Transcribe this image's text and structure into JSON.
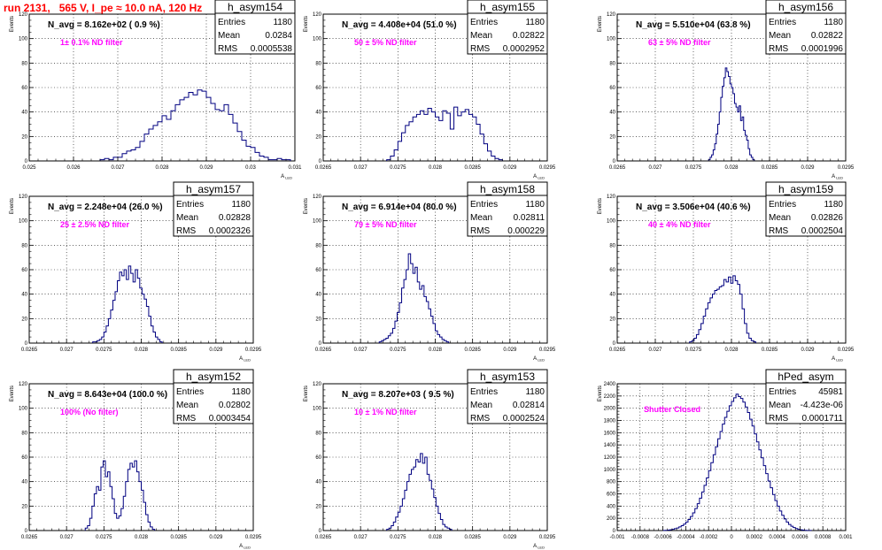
{
  "title": "run 2131,   565 V, I_pe ≈ 10.0 nA, 120 Hz",
  "chart_data": [
    {
      "type": "histogram",
      "name": "h_asym154",
      "stats": {
        "Entries": "1180",
        "Mean": "0.0284",
        "RMS": "0.0005538"
      },
      "n_avg": "N_avg = 8.162e+02 ( 0.9 %)",
      "filter_label": "1± 0.1% ND filter",
      "ylabel": "Events",
      "xlabel": "A",
      "xlabel_sub": "LED",
      "xlim": [
        0.025,
        0.031
      ],
      "ylim": [
        0,
        120
      ],
      "x_ticks": [
        0.025,
        0.026,
        0.027,
        0.028,
        0.029,
        0.03,
        0.031
      ],
      "x_tick_labels": [
        "0.025",
        "0.026",
        "0.027",
        "0.028",
        "0.029",
        "0.03",
        "0.031"
      ],
      "y_ticks": [
        0,
        20,
        40,
        60,
        80,
        100,
        120
      ],
      "grid": true,
      "bins": {
        "start": 0.0266,
        "width": 0.0001,
        "counts": [
          1,
          2,
          1,
          3,
          3,
          6,
          8,
          9,
          11,
          16,
          22,
          26,
          29,
          32,
          37,
          34,
          41,
          46,
          50,
          52,
          56,
          54,
          58,
          57,
          52,
          47,
          42,
          41,
          46,
          38,
          31,
          24,
          17,
          12,
          11,
          7,
          4,
          3,
          1,
          1,
          2,
          1,
          1
        ]
      }
    },
    {
      "type": "histogram",
      "name": "h_asym155",
      "stats": {
        "Entries": "1180",
        "Mean": "0.02822",
        "RMS": "0.0002952"
      },
      "n_avg": "N_avg = 4.408e+04 (51.0 %)",
      "filter_label": "50 ± 5% ND filter",
      "ylabel": "Events",
      "xlabel": "A",
      "xlabel_sub": "LED",
      "xlim": [
        0.0265,
        0.0295
      ],
      "ylim": [
        0,
        120
      ],
      "x_ticks": [
        0.0265,
        0.027,
        0.0275,
        0.028,
        0.0285,
        0.029,
        0.0295
      ],
      "x_tick_labels": [
        "0.0265",
        "0.027",
        "0.0275",
        "0.028",
        "0.0285",
        "0.029",
        "0.0295"
      ],
      "y_ticks": [
        0,
        20,
        40,
        60,
        80,
        100,
        120
      ],
      "grid": true,
      "bins": {
        "start": 0.02735,
        "width": 5e-05,
        "counts": [
          1,
          4,
          9,
          16,
          23,
          29,
          32,
          36,
          38,
          41,
          38,
          43,
          40,
          36,
          33,
          41,
          39,
          26,
          44,
          37,
          40,
          42,
          38,
          36,
          30,
          22,
          14,
          8,
          4,
          2,
          1
        ]
      }
    },
    {
      "type": "histogram",
      "name": "h_asym156",
      "stats": {
        "Entries": "1180",
        "Mean": "0.02822",
        "RMS": "0.0001996"
      },
      "n_avg": "N_avg = 5.510e+04 (63.8 %)",
      "filter_label": "63 ± 5% ND filter",
      "ylabel": "Events",
      "xlabel": "A",
      "xlabel_sub": "LED",
      "xlim": [
        0.0265,
        0.0295
      ],
      "ylim": [
        0,
        120
      ],
      "x_ticks": [
        0.0265,
        0.027,
        0.0275,
        0.028,
        0.0285,
        0.029,
        0.0295
      ],
      "x_tick_labels": [
        "0.0265",
        "0.027",
        "0.0275",
        "0.028",
        "0.0285",
        "0.029",
        "0.0295"
      ],
      "y_ticks": [
        0,
        20,
        40,
        60,
        80,
        100,
        120
      ],
      "grid": true,
      "bins": {
        "start": 0.0277,
        "width": 2e-05,
        "counts": [
          1,
          3,
          5,
          9,
          14,
          22,
          30,
          40,
          52,
          61,
          68,
          76,
          73,
          69,
          63,
          60,
          55,
          47,
          44,
          40,
          45,
          33,
          36,
          25,
          21,
          17,
          10,
          5,
          3,
          1
        ]
      }
    },
    {
      "type": "histogram",
      "name": "h_asym157",
      "stats": {
        "Entries": "1180",
        "Mean": "0.02828",
        "RMS": "0.0002326"
      },
      "n_avg": "N_avg = 2.248e+04 (26.0 %)",
      "filter_label": "25 ± 2.5% ND filter",
      "ylabel": "Events",
      "xlabel": "A",
      "xlabel_sub": "LED",
      "xlim": [
        0.0265,
        0.0295
      ],
      "ylim": [
        0,
        120
      ],
      "x_ticks": [
        0.0265,
        0.027,
        0.0275,
        0.028,
        0.0285,
        0.029,
        0.0295
      ],
      "x_tick_labels": [
        "0.0265",
        "0.027",
        "0.0275",
        "0.028",
        "0.0285",
        "0.029",
        "0.0295"
      ],
      "y_ticks": [
        0,
        20,
        40,
        60,
        80,
        100,
        120
      ],
      "grid": true,
      "bins": {
        "start": 0.02735,
        "width": 3e-05,
        "counts": [
          1,
          1,
          2,
          3,
          5,
          9,
          14,
          20,
          27,
          35,
          42,
          51,
          58,
          55,
          60,
          52,
          63,
          57,
          50,
          60,
          53,
          45,
          40,
          36,
          30,
          22,
          14,
          9,
          5,
          3,
          1
        ]
      }
    },
    {
      "type": "histogram",
      "name": "h_asym158",
      "stats": {
        "Entries": "1180",
        "Mean": "0.02811",
        "RMS": "0.000229"
      },
      "n_avg": "N_avg = 6.914e+04 (80.0 %)",
      "filter_label": "79 ± 5% ND filter",
      "ylabel": "Events",
      "xlabel": "A",
      "xlabel_sub": "LED",
      "xlim": [
        0.0265,
        0.0295
      ],
      "ylim": [
        0,
        120
      ],
      "x_ticks": [
        0.0265,
        0.027,
        0.0275,
        0.028,
        0.0285,
        0.029,
        0.0295
      ],
      "x_tick_labels": [
        "0.0265",
        "0.027",
        "0.0275",
        "0.028",
        "0.0285",
        "0.029",
        "0.0295"
      ],
      "y_ticks": [
        0,
        20,
        40,
        60,
        80,
        100,
        120
      ],
      "grid": true,
      "bins": {
        "start": 0.02725,
        "width": 3e-05,
        "counts": [
          1,
          2,
          3,
          4,
          6,
          8,
          12,
          18,
          25,
          33,
          45,
          52,
          60,
          73,
          65,
          57,
          62,
          50,
          44,
          47,
          38,
          34,
          28,
          22,
          16,
          10,
          7,
          5,
          3,
          2,
          1
        ]
      }
    },
    {
      "type": "histogram",
      "name": "h_asym159",
      "stats": {
        "Entries": "1180",
        "Mean": "0.02826",
        "RMS": "0.0002504"
      },
      "n_avg": "N_avg = 3.506e+04 (40.6 %)",
      "filter_label": "40 ± 4% ND filter",
      "ylabel": "Events",
      "xlabel": "A",
      "xlabel_sub": "LED",
      "xlim": [
        0.0265,
        0.0295
      ],
      "ylim": [
        0,
        120
      ],
      "x_ticks": [
        0.0265,
        0.027,
        0.0275,
        0.028,
        0.0285,
        0.029,
        0.0295
      ],
      "x_tick_labels": [
        "0.0265",
        "0.027",
        "0.0275",
        "0.028",
        "0.0285",
        "0.029",
        "0.0295"
      ],
      "y_ticks": [
        0,
        20,
        40,
        60,
        80,
        100,
        120
      ],
      "grid": true,
      "bins": {
        "start": 0.02745,
        "width": 3e-05,
        "counts": [
          1,
          2,
          4,
          7,
          11,
          16,
          22,
          28,
          33,
          37,
          40,
          43,
          44,
          46,
          47,
          52,
          50,
          54,
          49,
          55,
          51,
          48,
          40,
          28,
          16,
          8,
          4,
          2,
          1
        ]
      }
    },
    {
      "type": "histogram",
      "name": "h_asym152",
      "stats": {
        "Entries": "1180",
        "Mean": "0.02802",
        "RMS": "0.0003454"
      },
      "n_avg": "N_avg = 8.643e+04 (100.0 %)",
      "filter_label": "100% (No filter)",
      "ylabel": "Events",
      "xlabel": "A",
      "xlabel_sub": "LED",
      "xlim": [
        0.0265,
        0.0295
      ],
      "ylim": [
        0,
        120
      ],
      "x_ticks": [
        0.0265,
        0.027,
        0.0275,
        0.028,
        0.0285,
        0.029,
        0.0295
      ],
      "x_tick_labels": [
        "0.0265",
        "0.027",
        "0.0275",
        "0.028",
        "0.0285",
        "0.029",
        "0.0295"
      ],
      "y_ticks": [
        0,
        20,
        40,
        60,
        80,
        100,
        120
      ],
      "grid": true,
      "bins": {
        "start": 0.02725,
        "width": 3e-05,
        "counts": [
          2,
          4,
          10,
          20,
          30,
          36,
          33,
          52,
          57,
          44,
          48,
          36,
          26,
          14,
          10,
          12,
          18,
          28,
          40,
          50,
          55,
          52,
          57,
          48,
          40,
          33,
          23,
          13,
          7,
          3,
          1
        ]
      }
    },
    {
      "type": "histogram",
      "name": "h_asym153",
      "stats": {
        "Entries": "1180",
        "Mean": "0.02814",
        "RMS": "0.0002524"
      },
      "n_avg": "N_avg = 8.207e+03 ( 9.5 %)",
      "filter_label": "10 ± 1% ND filter",
      "ylabel": "Events",
      "xlabel": "A",
      "xlabel_sub": "LED",
      "xlim": [
        0.0265,
        0.0295
      ],
      "ylim": [
        0,
        120
      ],
      "x_ticks": [
        0.0265,
        0.027,
        0.0275,
        0.028,
        0.0285,
        0.029,
        0.0295
      ],
      "x_tick_labels": [
        "0.0265",
        "0.027",
        "0.0275",
        "0.028",
        "0.0285",
        "0.029",
        "0.0295"
      ],
      "y_ticks": [
        0,
        20,
        40,
        60,
        80,
        100,
        120
      ],
      "grid": true,
      "bins": {
        "start": 0.02735,
        "width": 3e-05,
        "counts": [
          1,
          2,
          4,
          7,
          11,
          15,
          20,
          26,
          33,
          40,
          46,
          50,
          52,
          58,
          56,
          63,
          55,
          60,
          46,
          41,
          34,
          27,
          20,
          14,
          9,
          5,
          3,
          2,
          1
        ]
      }
    },
    {
      "type": "histogram",
      "name": "hPed_asym",
      "stats": {
        "Entries": "45981",
        "Mean": "-4.423e-06",
        "RMS": "0.0001711"
      },
      "n_avg": "",
      "filter_label": "Shutter Closed",
      "ylabel": "Events",
      "xlabel": "",
      "xlabel_sub": "",
      "xlim": [
        -0.001,
        0.001
      ],
      "ylim": [
        0,
        2400
      ],
      "x_ticks": [
        -0.001,
        -0.0008,
        -0.0006,
        -0.0004,
        -0.0002,
        0,
        0.0002,
        0.0004,
        0.0006,
        0.0008,
        0.001
      ],
      "x_tick_labels": [
        "-0.001",
        "-0.0008",
        "-0.0006",
        "-0.0004",
        "-0.0002",
        "0",
        "0.0002",
        "0.0004",
        "0.0006",
        "0.0008",
        "0.001"
      ],
      "y_ticks": [
        0,
        200,
        400,
        600,
        800,
        1000,
        1200,
        1400,
        1600,
        1800,
        2000,
        2200,
        2400
      ],
      "grid": true,
      "bins": {
        "start": -0.0006,
        "width": 2e-05,
        "counts": [
          2,
          4,
          7,
          12,
          20,
          30,
          42,
          60,
          80,
          105,
          140,
          180,
          230,
          290,
          360,
          440,
          530,
          630,
          740,
          860,
          980,
          1110,
          1240,
          1370,
          1500,
          1620,
          1740,
          1850,
          1950,
          2040,
          2110,
          2170,
          2230,
          2190,
          2160,
          2100,
          2020,
          1930,
          1820,
          1710,
          1580,
          1450,
          1320,
          1190,
          1060,
          930,
          810,
          700,
          590,
          490,
          400,
          320,
          250,
          190,
          140,
          100,
          70,
          48,
          32,
          20,
          12,
          7,
          4,
          2,
          1
        ]
      }
    }
  ]
}
